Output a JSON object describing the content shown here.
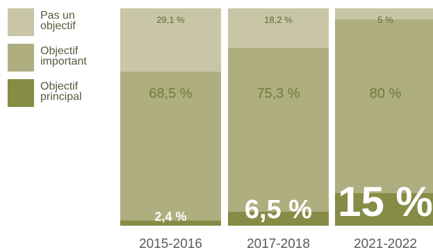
{
  "colors": {
    "not_objective": "#c8c6a6",
    "important": "#aeae80",
    "principal": "#868c46",
    "value_text": "#6b7d38",
    "value_text_light": "#5c6a32",
    "principal_label": "#ffffff",
    "axis_text": "#5a5a5a"
  },
  "legend": [
    {
      "label": "Pas un\nobjectif",
      "color_key": "not_objective",
      "icon": "light-swatch"
    },
    {
      "label": "Objectif\nimportant",
      "color_key": "important",
      "icon": "medium-swatch"
    },
    {
      "label": "Objectif\nprincipal",
      "color_key": "principal",
      "icon": "dark-swatch"
    }
  ],
  "chart_data": {
    "type": "bar",
    "stacked": true,
    "categories": [
      "2015-2016",
      "2017-2018",
      "2021-2022"
    ],
    "series": [
      {
        "name": "Objectif principal",
        "values": [
          2.4,
          6.5,
          15
        ],
        "labels": [
          "2,4 %",
          "6,5 %",
          "15 %"
        ]
      },
      {
        "name": "Objectif important",
        "values": [
          68.5,
          75.3,
          80
        ],
        "labels": [
          "68,5 %",
          "75,3 %",
          "80 %"
        ]
      },
      {
        "name": "Pas un objectif",
        "values": [
          29.1,
          18.2,
          5
        ],
        "labels": [
          "29,1 %",
          "18,2 %",
          "5 %"
        ]
      }
    ],
    "title": "",
    "xlabel": "",
    "ylabel": "",
    "ylim": [
      0,
      100
    ],
    "legend_position": "top-left"
  }
}
